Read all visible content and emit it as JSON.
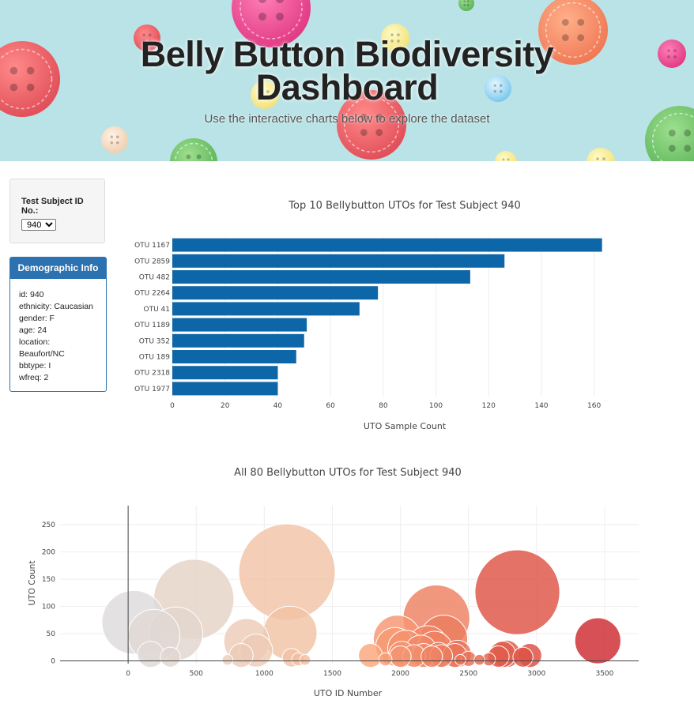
{
  "banner": {
    "title_line1": "Belly Button Biodiversity",
    "title_line2": "Dashboard",
    "subtitle": "Use the interactive charts below to explore the dataset"
  },
  "selector": {
    "label": "Test Subject ID No.:",
    "selected": "940",
    "caret-icon": "chevron-down-icon"
  },
  "demographic": {
    "heading": "Demographic Info",
    "lines": [
      "id: 940",
      "ethnicity: Caucasian",
      "gender: F",
      "age: 24",
      "location:",
      "Beaufort/NC",
      "bbtype: I",
      "wfreq: 2"
    ]
  },
  "colors": {
    "bar": "#0d66a8",
    "demo_accent": "#2c72b0"
  },
  "chart_data": [
    {
      "type": "bar",
      "orientation": "horizontal",
      "title": "Top 10 Bellybutton UTOs for Test Subject 940",
      "xlabel": "UTO Sample Count",
      "ylabel": "",
      "categories": [
        "OTU 1167",
        "OTU 2859",
        "OTU 482",
        "OTU 2264",
        "OTU 41",
        "OTU 1189",
        "OTU 352",
        "OTU 189",
        "OTU 2318",
        "OTU 1977"
      ],
      "values": [
        163,
        126,
        113,
        78,
        71,
        51,
        50,
        47,
        40,
        40
      ],
      "xlim": [
        0,
        170
      ],
      "xticks": [
        0,
        20,
        40,
        60,
        80,
        100,
        120,
        140,
        160
      ],
      "grid": true
    },
    {
      "type": "scatter",
      "subtype": "bubble",
      "title": "All 80 Bellybutton UTOs for Test Subject 940",
      "xlabel": "UTO ID Number",
      "ylabel": "UTO Count",
      "xlim": [
        -500,
        3750
      ],
      "ylim": [
        -5,
        285
      ],
      "xticks": [
        0,
        500,
        1000,
        1500,
        2000,
        2500,
        3000,
        3500
      ],
      "yticks": [
        0,
        50,
        100,
        150,
        200,
        250
      ],
      "color_scale": "ID number: grey (low) to salmon to red (high)",
      "grid": true,
      "points": [
        {
          "x": 41,
          "y": 71
        },
        {
          "x": 189,
          "y": 47
        },
        {
          "x": 352,
          "y": 50
        },
        {
          "x": 482,
          "y": 113
        },
        {
          "x": 870,
          "y": 36
        },
        {
          "x": 940,
          "y": 19
        },
        {
          "x": 1167,
          "y": 163
        },
        {
          "x": 1189,
          "y": 51
        },
        {
          "x": 1977,
          "y": 40
        },
        {
          "x": 1960,
          "y": 26
        },
        {
          "x": 2040,
          "y": 23
        },
        {
          "x": 2264,
          "y": 78
        },
        {
          "x": 2318,
          "y": 40
        },
        {
          "x": 2200,
          "y": 28
        },
        {
          "x": 2250,
          "y": 22
        },
        {
          "x": 2150,
          "y": 18
        },
        {
          "x": 2859,
          "y": 126
        },
        {
          "x": 3450,
          "y": 37
        },
        {
          "x": 165,
          "y": 12
        },
        {
          "x": 310,
          "y": 7
        },
        {
          "x": 830,
          "y": 10
        },
        {
          "x": 1200,
          "y": 6
        },
        {
          "x": 1780,
          "y": 10
        },
        {
          "x": 2000,
          "y": 8
        },
        {
          "x": 2010,
          "y": 12
        },
        {
          "x": 2100,
          "y": 9
        },
        {
          "x": 2170,
          "y": 10
        },
        {
          "x": 2230,
          "y": 8
        },
        {
          "x": 2280,
          "y": 11
        },
        {
          "x": 2300,
          "y": 9
        },
        {
          "x": 2400,
          "y": 10
        },
        {
          "x": 2420,
          "y": 13
        },
        {
          "x": 2500,
          "y": 4
        },
        {
          "x": 2720,
          "y": 8
        },
        {
          "x": 2750,
          "y": 12
        },
        {
          "x": 2780,
          "y": 13
        },
        {
          "x": 2900,
          "y": 7
        },
        {
          "x": 2950,
          "y": 10
        },
        {
          "x": 1250,
          "y": 3
        },
        {
          "x": 1300,
          "y": 2
        },
        {
          "x": 730,
          "y": 2
        },
        {
          "x": 2580,
          "y": 2
        },
        {
          "x": 2650,
          "y": 3
        },
        {
          "x": 1890,
          "y": 3
        },
        {
          "x": 2440,
          "y": 2
        }
      ]
    }
  ]
}
